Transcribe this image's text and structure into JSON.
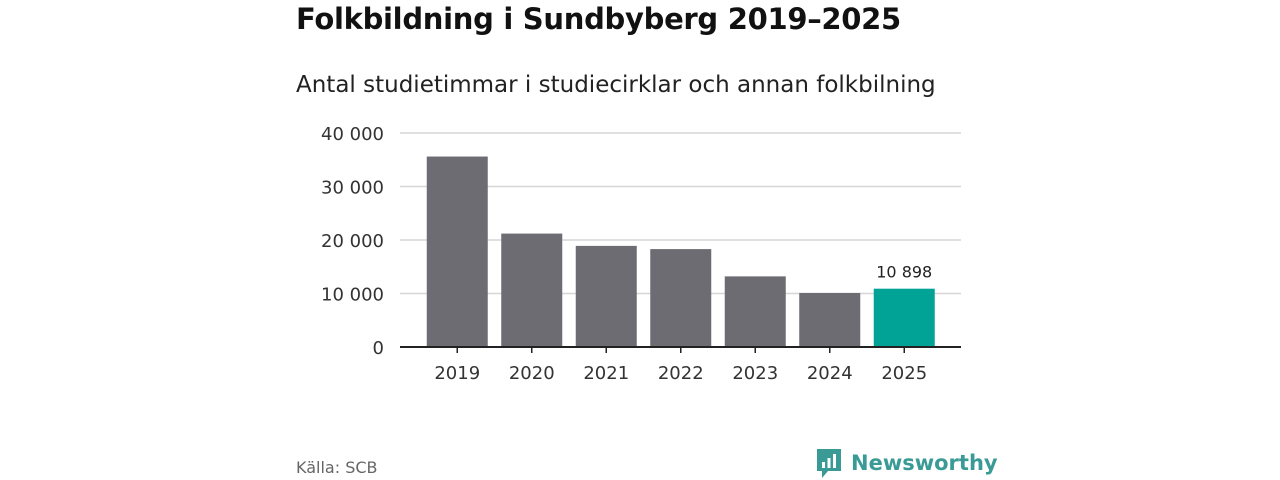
{
  "title": "Folkbildning i Sundbyberg 2019–2025",
  "subtitle": "Antal studietimmar i studiecirklar och annan folkbilning",
  "source": "Källa: SCB",
  "brand": {
    "name": "Newsworthy",
    "icon": "newsworthy-logo-icon",
    "color": "#3a9a95"
  },
  "colors": {
    "bar": "#6d6c72",
    "highlight": "#00a396",
    "grid": "#d6d6d6",
    "axis": "#222222"
  },
  "chart_data": {
    "type": "bar",
    "title": "Folkbildning i Sundbyberg 2019–2025",
    "subtitle": "Antal studietimmar i studiecirklar och annan folkbilning",
    "categories": [
      "2019",
      "2020",
      "2021",
      "2022",
      "2023",
      "2024",
      "2025"
    ],
    "values": [
      35600,
      21200,
      18900,
      18300,
      13200,
      10100,
      10898
    ],
    "highlight_index": 6,
    "data_labels": [
      {
        "index": 6,
        "text": "10 898"
      }
    ],
    "yticks": [
      0,
      10000,
      20000,
      30000,
      40000
    ],
    "ytick_labels": [
      "0",
      "10 000",
      "20 000",
      "30 000",
      "40 000"
    ],
    "ylim": [
      0,
      40000
    ],
    "grid": true,
    "legend": "none"
  }
}
